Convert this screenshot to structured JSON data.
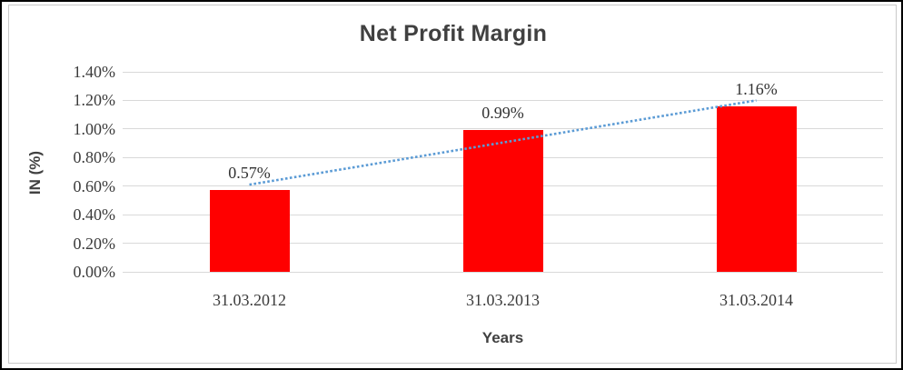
{
  "window": {
    "background": "#ffffff",
    "outer_border_color": "#000000",
    "inner_border_color": "#c9c9c9"
  },
  "chart_data": {
    "type": "bar",
    "title": "Net Profit Margin",
    "xlabel": "Years",
    "ylabel": "IN (%)",
    "categories": [
      "31.03.2012",
      "31.03.2013",
      "31.03.2014"
    ],
    "values": [
      0.57,
      0.99,
      1.16
    ],
    "data_labels": [
      "0.57%",
      "0.99%",
      "1.16%"
    ],
    "y_ticks": [
      "0.00%",
      "0.20%",
      "0.40%",
      "0.60%",
      "0.80%",
      "1.00%",
      "1.20%",
      "1.40%"
    ],
    "ylim": [
      0,
      1.4
    ],
    "grid": true,
    "legend": "none",
    "bar_color": "#ff0000",
    "gridline_color": "#d9d9d9",
    "text_color": "#3b3b3b",
    "title_color": "#404040",
    "trendline": {
      "type": "linear",
      "style": "dotted",
      "color": "#5b9bd5",
      "start_value": 0.61,
      "end_value": 1.2
    }
  }
}
